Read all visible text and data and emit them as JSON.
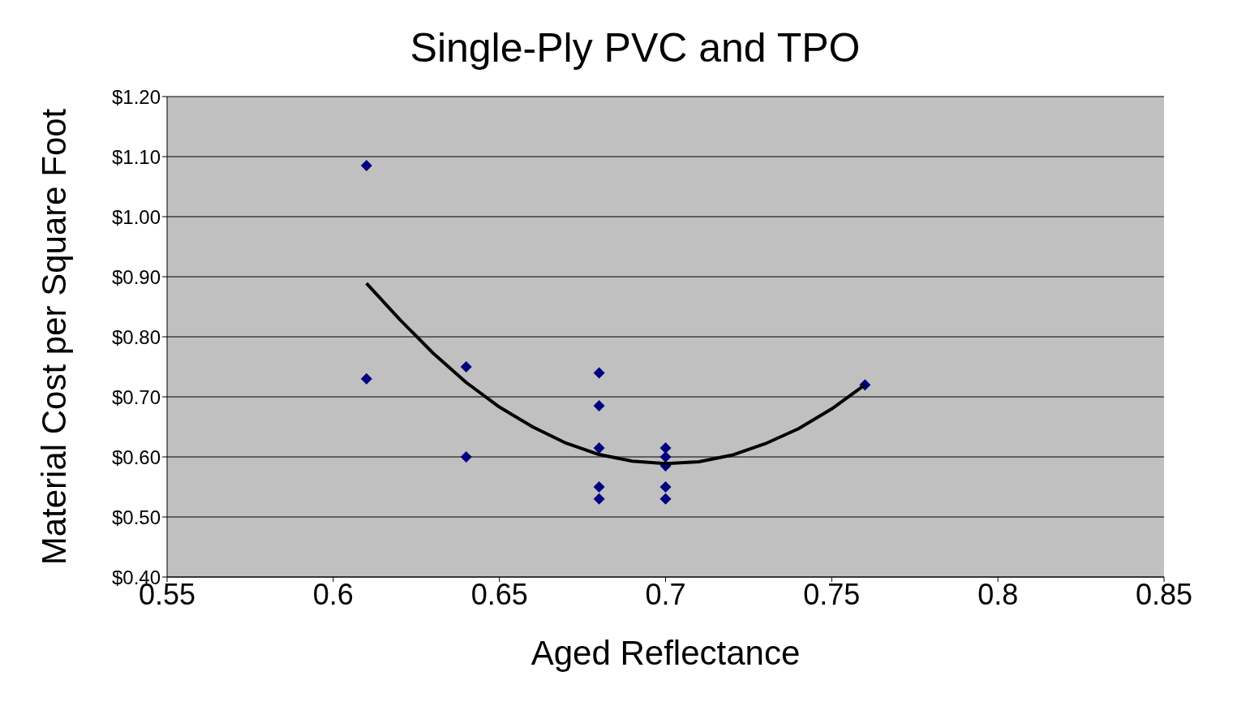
{
  "chart_data": {
    "type": "scatter",
    "title": "Single-Ply PVC and TPO",
    "xlabel": "Aged Reflectance",
    "ylabel": "Material Cost per Square Foot",
    "xlim": [
      0.55,
      0.85
    ],
    "xticks": [
      0.55,
      0.6,
      0.65,
      0.7,
      0.75,
      0.8,
      0.85
    ],
    "ylim": [
      0.4,
      1.2
    ],
    "yticks": [
      {
        "value": 0.4,
        "label": "$0.40"
      },
      {
        "value": 0.5,
        "label": "$0.50"
      },
      {
        "value": 0.6,
        "label": "$0.60"
      },
      {
        "value": 0.7,
        "label": "$0.70"
      },
      {
        "value": 0.8,
        "label": "$0.80"
      },
      {
        "value": 0.9,
        "label": "$0.90"
      },
      {
        "value": 1.0,
        "label": "$1.00"
      },
      {
        "value": 1.1,
        "label": "$1.10"
      },
      {
        "value": 1.2,
        "label": "$1.20"
      }
    ],
    "grid": "y",
    "legend": false,
    "marker": "diamond",
    "series": [
      {
        "color": "#000080",
        "x": [
          0.61,
          0.61,
          0.64,
          0.64,
          0.68,
          0.68,
          0.68,
          0.68,
          0.68,
          0.7,
          0.7,
          0.7,
          0.7,
          0.7,
          0.76
        ],
        "values": [
          1.085,
          0.73,
          0.75,
          0.6,
          0.74,
          0.685,
          0.615,
          0.55,
          0.53,
          0.615,
          0.6,
          0.585,
          0.55,
          0.53,
          0.72
        ]
      },
      {
        "type": "line",
        "color": "#000000",
        "marker": "none",
        "x": [
          0.61,
          0.62,
          0.63,
          0.64,
          0.65,
          0.66,
          0.67,
          0.68,
          0.69,
          0.7,
          0.71,
          0.72,
          0.73,
          0.74,
          0.75,
          0.76
        ],
        "values": [
          0.889,
          0.829,
          0.773,
          0.724,
          0.683,
          0.65,
          0.623,
          0.604,
          0.593,
          0.589,
          0.592,
          0.603,
          0.622,
          0.647,
          0.68,
          0.72
        ]
      }
    ]
  }
}
